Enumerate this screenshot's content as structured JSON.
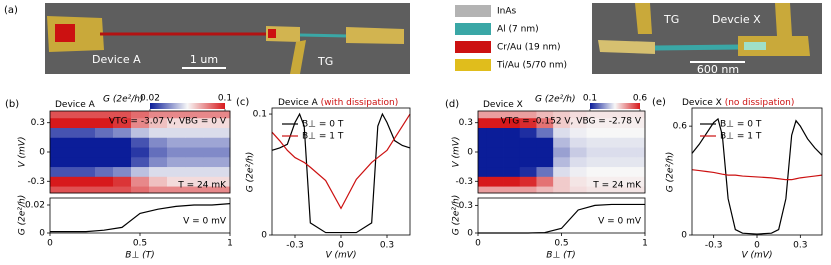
{
  "panel_a": {
    "label": "(a)",
    "image_left": {
      "device_label": "Device A",
      "scale_bar": "1 um",
      "gate_label": "TG"
    },
    "legend": [
      {
        "name": "InAs",
        "color": "#b3b3b3"
      },
      {
        "name": "Al (7 nm)",
        "color": "#3aa7a6"
      },
      {
        "name": "Cr/Au (19 nm)",
        "color": "#cc1111"
      },
      {
        "name": "Ti/Au (5/70 nm)",
        "color": "#e0bd1c"
      }
    ],
    "image_right": {
      "gate_label": "TG",
      "device_label": "Devcie X",
      "scale_bar": "600 nm"
    }
  },
  "chart_data": [
    {
      "type": "heatmap",
      "panel": "(b)",
      "title": "Device A",
      "colorbar_label": "G (2e²/h)",
      "clim": [
        0.02,
        0.1
      ],
      "cticks": [
        0.02,
        0.1
      ],
      "colors": [
        "#0b1d99",
        "#f7f7f7",
        "#d7191c"
      ],
      "x": [
        0,
        0.1,
        0.2,
        0.3,
        0.4,
        0.5,
        0.6,
        0.7,
        0.8,
        0.9,
        1.0
      ],
      "y": [
        -0.4,
        -0.3,
        -0.2,
        -0.1,
        0,
        0.1,
        0.2,
        0.3,
        0.4
      ],
      "z": [
        [
          0.09,
          0.09,
          0.09,
          0.09,
          0.09,
          0.085,
          0.08,
          0.08,
          0.08,
          0.08,
          0.08
        ],
        [
          0.1,
          0.1,
          0.1,
          0.1,
          0.095,
          0.08,
          0.07,
          0.065,
          0.065,
          0.065,
          0.065
        ],
        [
          0.03,
          0.03,
          0.03,
          0.035,
          0.04,
          0.05,
          0.055,
          0.055,
          0.055,
          0.055,
          0.055
        ],
        [
          0.005,
          0.005,
          0.006,
          0.008,
          0.015,
          0.03,
          0.04,
          0.045,
          0.045,
          0.045,
          0.045
        ],
        [
          0.003,
          0.003,
          0.004,
          0.006,
          0.012,
          0.025,
          0.035,
          0.04,
          0.04,
          0.04,
          0.04
        ],
        [
          0.005,
          0.005,
          0.006,
          0.008,
          0.015,
          0.03,
          0.04,
          0.045,
          0.045,
          0.045,
          0.045
        ],
        [
          0.03,
          0.03,
          0.03,
          0.035,
          0.04,
          0.05,
          0.055,
          0.055,
          0.055,
          0.055,
          0.055
        ],
        [
          0.1,
          0.1,
          0.1,
          0.1,
          0.095,
          0.08,
          0.07,
          0.065,
          0.065,
          0.065,
          0.065
        ],
        [
          0.09,
          0.09,
          0.09,
          0.09,
          0.09,
          0.085,
          0.08,
          0.08,
          0.08,
          0.08,
          0.08
        ]
      ],
      "xlim": [
        0,
        1
      ],
      "ylim": [
        -0.42,
        0.42
      ],
      "yticks": [
        -0.3,
        0,
        0.3
      ],
      "ylabel": "V (mV)",
      "annotations": [
        "VTG = -3.07 V, VBG = 0 V",
        "T = 24 mK"
      ]
    },
    {
      "type": "line",
      "x": [
        0,
        0.1,
        0.2,
        0.3,
        0.4,
        0.5,
        0.6,
        0.7,
        0.8,
        0.9,
        1.0
      ],
      "series": [
        {
          "color": "#000000",
          "values": [
            0.001,
            0.001,
            0.001,
            0.002,
            0.004,
            0.014,
            0.017,
            0.019,
            0.02,
            0.02,
            0.021
          ]
        }
      ],
      "xlim": [
        0,
        1
      ],
      "ylim": [
        0,
        0.025
      ],
      "xticks": [
        0,
        0.5,
        1
      ],
      "yticks": [
        0,
        0.02
      ],
      "xlabel": "B⊥ (T)",
      "ylabel": "G (2e²/h)",
      "annotations": [
        "V = 0 mV"
      ]
    },
    {
      "type": "line",
      "panel": "(c)",
      "title": "Device A",
      "subtitle": "(with dissipation)",
      "subtitle_color": "#cc1111",
      "x": [
        -0.45,
        -0.4,
        -0.35,
        -0.3,
        -0.27,
        -0.24,
        -0.2,
        -0.1,
        0,
        0.1,
        0.2,
        0.24,
        0.27,
        0.3,
        0.35,
        0.4,
        0.45
      ],
      "series": [
        {
          "name": "B⊥ = 0 T",
          "color": "#000000",
          "values": [
            0.07,
            0.072,
            0.075,
            0.093,
            0.1,
            0.09,
            0.01,
            0.002,
            0.002,
            0.002,
            0.01,
            0.09,
            0.1,
            0.093,
            0.078,
            0.074,
            0.072
          ]
        },
        {
          "name": "B⊥ = 1 T",
          "color": "#cc1111",
          "values": [
            0.085,
            0.078,
            0.07,
            0.064,
            0.062,
            0.06,
            0.056,
            0.045,
            0.022,
            0.046,
            0.06,
            0.064,
            0.067,
            0.07,
            0.08,
            0.09,
            0.1
          ]
        }
      ],
      "xlim": [
        -0.45,
        0.45
      ],
      "ylim": [
        0,
        0.105
      ],
      "xticks": [
        -0.3,
        0,
        0.3
      ],
      "yticks": [
        0,
        0.1
      ],
      "xlabel": "V (mV)",
      "ylabel": "G (2e²/h)",
      "legend": "upper left"
    },
    {
      "type": "heatmap",
      "panel": "(d)",
      "title": "Device X",
      "colorbar_label": "G (2e²/h)",
      "clim": [
        0.1,
        0.6
      ],
      "cticks": [
        0.1,
        0.6
      ],
      "colors": [
        "#0b1d99",
        "#f7f7f7",
        "#d7191c"
      ],
      "x": [
        0,
        0.1,
        0.2,
        0.3,
        0.4,
        0.5,
        0.6,
        0.7,
        0.8,
        0.9,
        1.0
      ],
      "y": [
        -0.4,
        -0.3,
        -0.2,
        -0.1,
        0,
        0.1,
        0.2,
        0.3,
        0.4
      ],
      "z": [
        [
          0.45,
          0.45,
          0.45,
          0.45,
          0.42,
          0.4,
          0.38,
          0.37,
          0.37,
          0.37,
          0.37
        ],
        [
          0.6,
          0.6,
          0.6,
          0.58,
          0.5,
          0.4,
          0.37,
          0.36,
          0.36,
          0.36,
          0.36
        ],
        [
          0.1,
          0.1,
          0.1,
          0.12,
          0.2,
          0.32,
          0.34,
          0.35,
          0.35,
          0.35,
          0.35
        ],
        [
          0.02,
          0.02,
          0.02,
          0.03,
          0.08,
          0.28,
          0.32,
          0.33,
          0.33,
          0.33,
          0.33
        ],
        [
          0.01,
          0.01,
          0.01,
          0.02,
          0.05,
          0.25,
          0.3,
          0.32,
          0.32,
          0.32,
          0.32
        ],
        [
          0.02,
          0.02,
          0.02,
          0.03,
          0.08,
          0.28,
          0.32,
          0.33,
          0.33,
          0.33,
          0.33
        ],
        [
          0.1,
          0.1,
          0.1,
          0.12,
          0.2,
          0.32,
          0.34,
          0.35,
          0.35,
          0.35,
          0.35
        ],
        [
          0.6,
          0.6,
          0.6,
          0.58,
          0.5,
          0.4,
          0.37,
          0.36,
          0.36,
          0.36,
          0.36
        ],
        [
          0.45,
          0.45,
          0.45,
          0.45,
          0.42,
          0.4,
          0.38,
          0.37,
          0.37,
          0.37,
          0.37
        ]
      ],
      "xlim": [
        0,
        1
      ],
      "ylim": [
        -0.42,
        0.42
      ],
      "yticks": [
        -0.3,
        0,
        0.3
      ],
      "ylabel": "V (mV)",
      "annotations": [
        "VTG = -0.152 V, VBG = -2.78 V",
        "T = 24 mK"
      ]
    },
    {
      "type": "line",
      "x": [
        0,
        0.1,
        0.2,
        0.3,
        0.4,
        0.5,
        0.6,
        0.7,
        0.8,
        0.9,
        1.0
      ],
      "series": [
        {
          "color": "#000000",
          "values": [
            0,
            0,
            0,
            0,
            0.005,
            0.05,
            0.25,
            0.3,
            0.31,
            0.31,
            0.31
          ]
        }
      ],
      "xlim": [
        0,
        1
      ],
      "ylim": [
        0,
        0.38
      ],
      "xticks": [
        0,
        0.5,
        1
      ],
      "yticks": [
        0,
        0.3
      ],
      "xlabel": "B⊥ (T)",
      "ylabel": "G (2e²/h)",
      "annotations": [
        "V = 0 mV"
      ]
    },
    {
      "type": "line",
      "panel": "(e)",
      "title": "Device X",
      "subtitle": "(no dissipation)",
      "subtitle_color": "#cc1111",
      "x": [
        -0.45,
        -0.4,
        -0.35,
        -0.3,
        -0.27,
        -0.24,
        -0.2,
        -0.15,
        -0.1,
        0,
        0.1,
        0.15,
        0.2,
        0.24,
        0.27,
        0.3,
        0.35,
        0.4,
        0.45
      ],
      "series": [
        {
          "name": "B⊥ = 0 T",
          "color": "#000000",
          "values": [
            0.45,
            0.5,
            0.56,
            0.62,
            0.64,
            0.55,
            0.2,
            0.03,
            0.01,
            0.005,
            0.01,
            0.03,
            0.2,
            0.55,
            0.63,
            0.6,
            0.53,
            0.48,
            0.44
          ]
        },
        {
          "name": "B⊥ = 1 T",
          "color": "#cc1111",
          "values": [
            0.36,
            0.355,
            0.35,
            0.345,
            0.34,
            0.335,
            0.33,
            0.33,
            0.325,
            0.32,
            0.315,
            0.31,
            0.305,
            0.305,
            0.31,
            0.315,
            0.32,
            0.325,
            0.33
          ]
        }
      ],
      "xlim": [
        -0.45,
        0.45
      ],
      "ylim": [
        0,
        0.7
      ],
      "xticks": [
        -0.3,
        0,
        0.3
      ],
      "yticks": [
        0,
        0.6
      ],
      "xlabel": "V (mV)",
      "ylabel": "G (2e²/h)",
      "legend": "upper left"
    }
  ]
}
